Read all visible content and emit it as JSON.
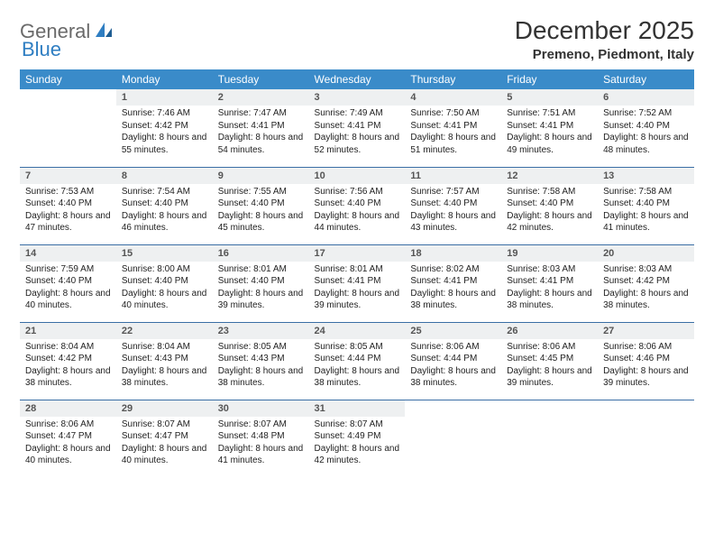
{
  "brand": {
    "word1": "General",
    "word2": "Blue"
  },
  "title": "December 2025",
  "location": "Premeno, Piedmont, Italy",
  "colors": {
    "header_bg": "#3a8bc9",
    "header_text": "#ffffff",
    "row_divider": "#3a6ea5",
    "daynum_bg": "#eef0f1",
    "brand_gray": "#6a6a6a",
    "brand_blue": "#2f7ec2"
  },
  "day_names": [
    "Sunday",
    "Monday",
    "Tuesday",
    "Wednesday",
    "Thursday",
    "Friday",
    "Saturday"
  ],
  "weeks": [
    [
      null,
      {
        "n": "1",
        "sr": "7:46 AM",
        "ss": "4:42 PM",
        "dl": "8 hours and 55 minutes."
      },
      {
        "n": "2",
        "sr": "7:47 AM",
        "ss": "4:41 PM",
        "dl": "8 hours and 54 minutes."
      },
      {
        "n": "3",
        "sr": "7:49 AM",
        "ss": "4:41 PM",
        "dl": "8 hours and 52 minutes."
      },
      {
        "n": "4",
        "sr": "7:50 AM",
        "ss": "4:41 PM",
        "dl": "8 hours and 51 minutes."
      },
      {
        "n": "5",
        "sr": "7:51 AM",
        "ss": "4:41 PM",
        "dl": "8 hours and 49 minutes."
      },
      {
        "n": "6",
        "sr": "7:52 AM",
        "ss": "4:40 PM",
        "dl": "8 hours and 48 minutes."
      }
    ],
    [
      {
        "n": "7",
        "sr": "7:53 AM",
        "ss": "4:40 PM",
        "dl": "8 hours and 47 minutes."
      },
      {
        "n": "8",
        "sr": "7:54 AM",
        "ss": "4:40 PM",
        "dl": "8 hours and 46 minutes."
      },
      {
        "n": "9",
        "sr": "7:55 AM",
        "ss": "4:40 PM",
        "dl": "8 hours and 45 minutes."
      },
      {
        "n": "10",
        "sr": "7:56 AM",
        "ss": "4:40 PM",
        "dl": "8 hours and 44 minutes."
      },
      {
        "n": "11",
        "sr": "7:57 AM",
        "ss": "4:40 PM",
        "dl": "8 hours and 43 minutes."
      },
      {
        "n": "12",
        "sr": "7:58 AM",
        "ss": "4:40 PM",
        "dl": "8 hours and 42 minutes."
      },
      {
        "n": "13",
        "sr": "7:58 AM",
        "ss": "4:40 PM",
        "dl": "8 hours and 41 minutes."
      }
    ],
    [
      {
        "n": "14",
        "sr": "7:59 AM",
        "ss": "4:40 PM",
        "dl": "8 hours and 40 minutes."
      },
      {
        "n": "15",
        "sr": "8:00 AM",
        "ss": "4:40 PM",
        "dl": "8 hours and 40 minutes."
      },
      {
        "n": "16",
        "sr": "8:01 AM",
        "ss": "4:40 PM",
        "dl": "8 hours and 39 minutes."
      },
      {
        "n": "17",
        "sr": "8:01 AM",
        "ss": "4:41 PM",
        "dl": "8 hours and 39 minutes."
      },
      {
        "n": "18",
        "sr": "8:02 AM",
        "ss": "4:41 PM",
        "dl": "8 hours and 38 minutes."
      },
      {
        "n": "19",
        "sr": "8:03 AM",
        "ss": "4:41 PM",
        "dl": "8 hours and 38 minutes."
      },
      {
        "n": "20",
        "sr": "8:03 AM",
        "ss": "4:42 PM",
        "dl": "8 hours and 38 minutes."
      }
    ],
    [
      {
        "n": "21",
        "sr": "8:04 AM",
        "ss": "4:42 PM",
        "dl": "8 hours and 38 minutes."
      },
      {
        "n": "22",
        "sr": "8:04 AM",
        "ss": "4:43 PM",
        "dl": "8 hours and 38 minutes."
      },
      {
        "n": "23",
        "sr": "8:05 AM",
        "ss": "4:43 PM",
        "dl": "8 hours and 38 minutes."
      },
      {
        "n": "24",
        "sr": "8:05 AM",
        "ss": "4:44 PM",
        "dl": "8 hours and 38 minutes."
      },
      {
        "n": "25",
        "sr": "8:06 AM",
        "ss": "4:44 PM",
        "dl": "8 hours and 38 minutes."
      },
      {
        "n": "26",
        "sr": "8:06 AM",
        "ss": "4:45 PM",
        "dl": "8 hours and 39 minutes."
      },
      {
        "n": "27",
        "sr": "8:06 AM",
        "ss": "4:46 PM",
        "dl": "8 hours and 39 minutes."
      }
    ],
    [
      {
        "n": "28",
        "sr": "8:06 AM",
        "ss": "4:47 PM",
        "dl": "8 hours and 40 minutes."
      },
      {
        "n": "29",
        "sr": "8:07 AM",
        "ss": "4:47 PM",
        "dl": "8 hours and 40 minutes."
      },
      {
        "n": "30",
        "sr": "8:07 AM",
        "ss": "4:48 PM",
        "dl": "8 hours and 41 minutes."
      },
      {
        "n": "31",
        "sr": "8:07 AM",
        "ss": "4:49 PM",
        "dl": "8 hours and 42 minutes."
      },
      null,
      null,
      null
    ]
  ],
  "labels": {
    "sunrise": "Sunrise:",
    "sunset": "Sunset:",
    "daylight": "Daylight:"
  }
}
